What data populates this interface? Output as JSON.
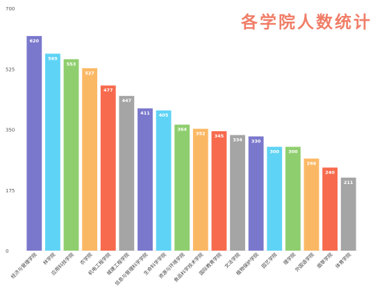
{
  "chart_data": {
    "type": "bar",
    "title": "各学院人数统计",
    "xlabel": "",
    "ylabel": "",
    "ylim": [
      0,
      700
    ],
    "yticks": [
      0,
      175,
      350,
      525,
      700
    ],
    "grid": false,
    "legend": "none",
    "categories": [
      "经济与管理学院",
      "林学院",
      "应用科技学院",
      "农学院",
      "机电工程学院",
      "城建工程学院",
      "信息与管理科学学院",
      "生命科学学院",
      "资源与环境学院",
      "食品科学技术学院",
      "国际教育学院",
      "文法学院",
      "植物保护学院",
      "园艺学院",
      "理学院",
      "外国语学院",
      "烟草学院",
      "体育学院"
    ],
    "values": [
      620,
      569,
      553,
      527,
      477,
      447,
      411,
      405,
      364,
      352,
      345,
      334,
      330,
      300,
      300,
      266,
      240,
      211
    ],
    "colors": [
      "#7a78cc",
      "#5fd3f5",
      "#8fce6e",
      "#fbb864",
      "#f76a4d",
      "#a5a5a5",
      "#7a78cc",
      "#5fd3f5",
      "#8fce6e",
      "#fbb864",
      "#f76a4d",
      "#a5a5a5",
      "#7a78cc",
      "#5fd3f5",
      "#8fce6e",
      "#fbb864",
      "#f76a4d",
      "#a5a5a5"
    ]
  }
}
